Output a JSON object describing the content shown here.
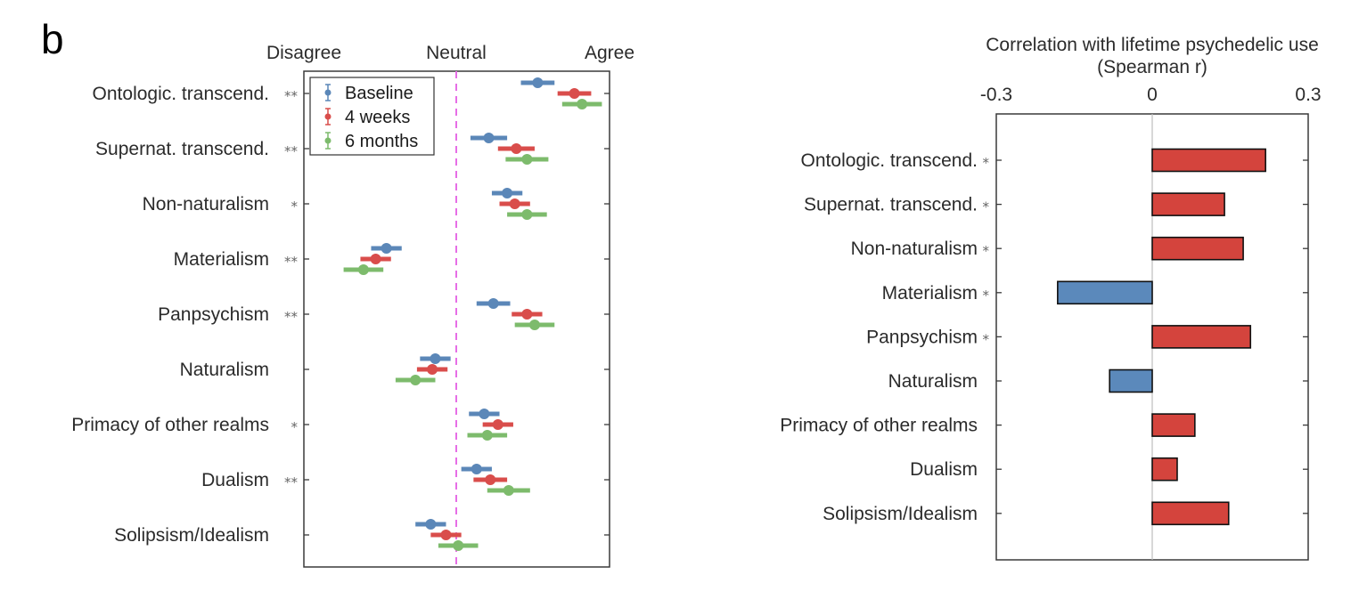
{
  "panel_label": "b",
  "chart_data": [
    {
      "type": "scatter",
      "subtype": "dot-with-horizontal-error-bars",
      "title": "",
      "x_axis_labels": {
        "left": "Disagree",
        "center": "Neutral",
        "right": "Agree"
      },
      "xlim": [
        -1,
        1
      ],
      "neutral_line": {
        "x": 0,
        "color": "#e66ee6",
        "style": "dashed"
      },
      "categories": [
        "Ontologic. transcend.",
        "Supernat. transcend.",
        "Non-naturalism",
        "Materialism",
        "Panpsychism",
        "Naturalism",
        "Primacy of other realms",
        "Dualism",
        "Solipsism/Idealism"
      ],
      "significance": [
        "**",
        "**",
        "*",
        "**",
        "**",
        "",
        "*",
        "**",
        ""
      ],
      "legend": {
        "position": "top-left",
        "entries": [
          "Baseline",
          "4 weeks",
          "6 months"
        ]
      },
      "series": [
        {
          "name": "Baseline",
          "color": "#5b87b8",
          "values": [
            0.53,
            0.21,
            0.33,
            -0.46,
            0.24,
            -0.14,
            0.18,
            0.13,
            -0.17
          ],
          "errors": [
            0.11,
            0.12,
            0.1,
            0.1,
            0.11,
            0.1,
            0.1,
            0.1,
            0.1
          ]
        },
        {
          "name": "4 weeks",
          "color": "#d94d4b",
          "values": [
            0.77,
            0.39,
            0.38,
            -0.53,
            0.46,
            -0.16,
            0.27,
            0.22,
            -0.07
          ],
          "errors": [
            0.11,
            0.12,
            0.1,
            0.1,
            0.1,
            0.1,
            0.1,
            0.11,
            0.1
          ]
        },
        {
          "name": "6 months",
          "color": "#7dbb6c",
          "values": [
            0.82,
            0.46,
            0.46,
            -0.61,
            0.51,
            -0.27,
            0.2,
            0.34,
            0.01
          ],
          "errors": [
            0.13,
            0.14,
            0.13,
            0.13,
            0.13,
            0.13,
            0.13,
            0.14,
            0.13
          ]
        }
      ]
    },
    {
      "type": "bar",
      "orientation": "horizontal",
      "title": "Correlation with lifetime psychedelic use",
      "subtitle": "(Spearman r)",
      "xlim": [
        -0.3,
        0.3
      ],
      "x_ticks": [
        "-0.3",
        "0",
        "0.3"
      ],
      "x_tick_values": [
        -0.3,
        0,
        0.3
      ],
      "categories": [
        "Ontologic. transcend.",
        "Supernat. transcend.",
        "Non-naturalism",
        "Materialism",
        "Panpsychism",
        "Naturalism",
        "Primacy of other realms",
        "Dualism",
        "Solipsism/Idealism"
      ],
      "significance": [
        "*",
        "*",
        "*",
        "*",
        "*",
        "",
        "",
        "",
        ""
      ],
      "values": [
        0.218,
        0.139,
        0.175,
        -0.182,
        0.189,
        -0.082,
        0.082,
        0.048,
        0.147
      ],
      "colors": {
        "positive": "#d4443d",
        "negative": "#5b89bb"
      }
    }
  ]
}
